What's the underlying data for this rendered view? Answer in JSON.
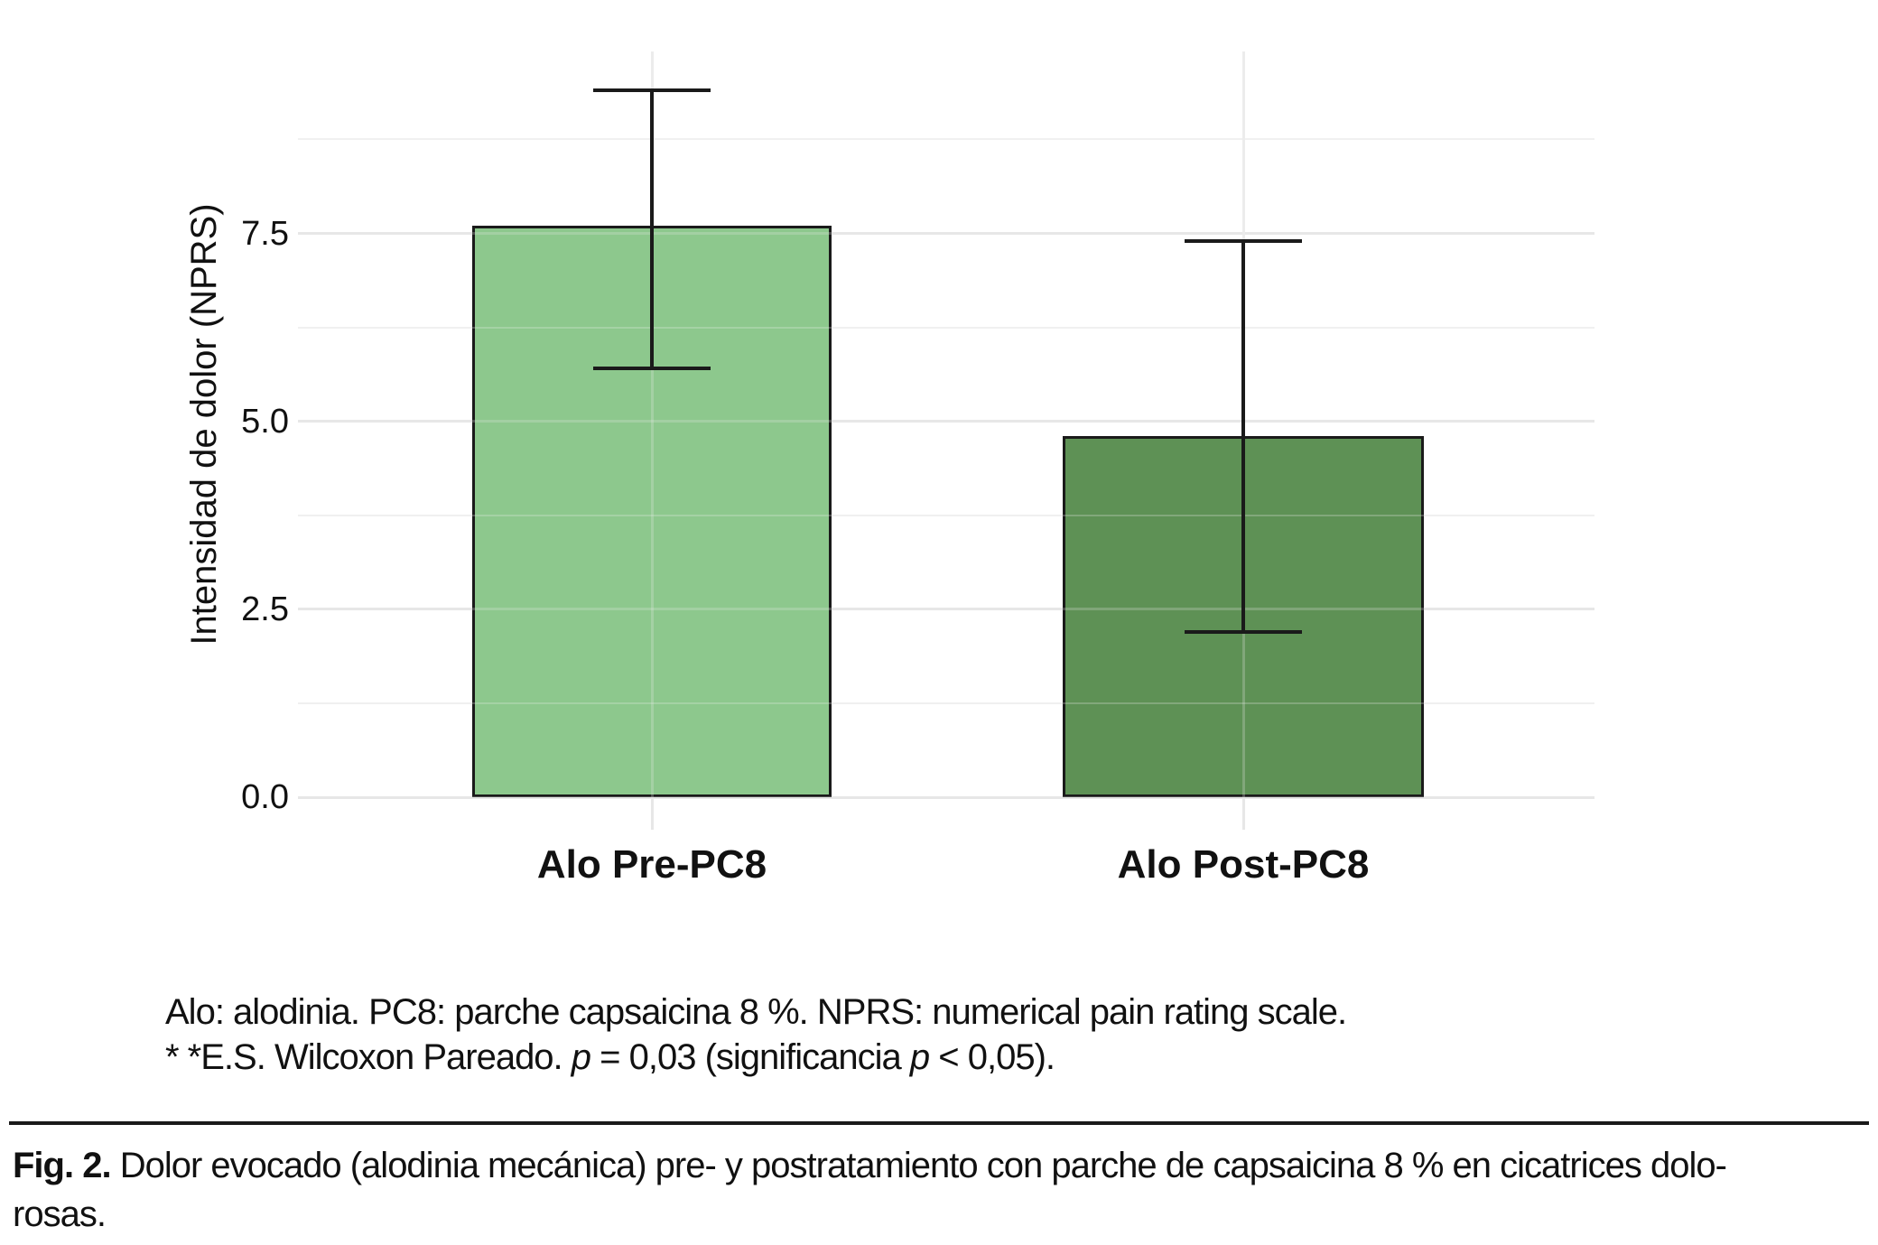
{
  "chart_data": {
    "type": "bar",
    "title": "",
    "categories": [
      "Alo Pre-PC8",
      "Alo Post-PC8"
    ],
    "values": [
      7.6,
      4.8
    ],
    "error_bars": [
      {
        "lower": 5.7,
        "upper": 9.4
      },
      {
        "lower": 2.2,
        "upper": 7.4
      }
    ],
    "bar_colors": [
      "#8dc88d",
      "#5e9155"
    ],
    "bar_edge_color": "#1a1a1a",
    "xlabel": "",
    "ylabel": "Intensidad de dolor (NPRS)",
    "ylim": [
      0,
      9.92
    ],
    "yticks": {
      "values": [
        0,
        2.5,
        5,
        7.5
      ],
      "labels": [
        "0.0",
        "2.5",
        "5.0",
        "7.5"
      ]
    },
    "yticks_minor": [
      1.25,
      3.75,
      6.25,
      8.75
    ],
    "grid": "horizontal major+minor light gray, vertical line at each category center",
    "legend": "none",
    "grid_major_color": "#e7e7e7",
    "grid_minor_color": "#f0f0f0",
    "grid_vertical_color": "#ececec"
  },
  "footnotes": {
    "line1": "Alo: alodinia. PC8: parche capsaicina 8 %. NPRS: numerical pain rating scale.",
    "line2_parts": [
      "* *E.S. Wilcoxon Pareado. ",
      "p",
      " = 0,03 (significancia ",
      "p",
      " < 0,05)."
    ]
  },
  "caption": {
    "label": "Fig. 2.",
    "line1": " Dolor evocado (alodinia mecánica) pre- y postratamiento con parche de capsaicina 8 % en cicatrices dolo-",
    "line2": "rosas."
  }
}
